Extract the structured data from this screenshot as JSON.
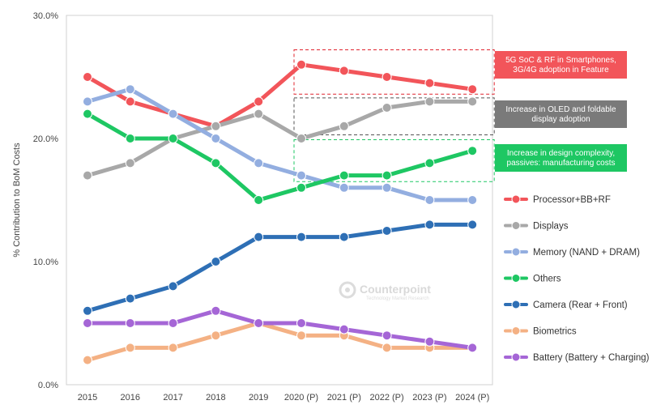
{
  "chart_data": {
    "type": "line",
    "ylabel": "% Contribution to BoM Costs",
    "ylim": [
      0,
      30
    ],
    "yticks": [
      0,
      10,
      20,
      30
    ],
    "ytick_labels": [
      "0.0%",
      "10.0%",
      "20.0%",
      "30.0%"
    ],
    "categories": [
      "2015",
      "2016",
      "2017",
      "2018",
      "2019",
      "2020 (P)",
      "2021 (P)",
      "2022 (P)",
      "2023 (P)",
      "2024 (P)"
    ],
    "legend_position": "right",
    "grid": false,
    "series": [
      {
        "name": "Processor+BB+RF",
        "color": "#f2555a",
        "values": [
          25,
          23,
          22,
          21,
          23,
          26,
          25.5,
          25,
          24.5,
          24
        ]
      },
      {
        "name": "Displays",
        "color": "#a8a8a8",
        "values": [
          17,
          18,
          20,
          21,
          22,
          20,
          21,
          22.5,
          23,
          23
        ]
      },
      {
        "name": "Memory (NAND + DRAM)",
        "color": "#93aee0",
        "values": [
          23,
          24,
          22,
          20,
          18,
          17,
          16,
          16,
          15,
          15
        ]
      },
      {
        "name": "Others",
        "color": "#1ec763",
        "values": [
          22,
          20,
          20,
          18,
          15,
          16,
          17,
          17,
          18,
          19
        ]
      },
      {
        "name": "Camera (Rear + Front)",
        "color": "#2e6fb5",
        "values": [
          6,
          7,
          8,
          10,
          12,
          12,
          12,
          12.5,
          13,
          13
        ]
      },
      {
        "name": "Biometrics",
        "color": "#f4b184",
        "values": [
          2,
          3,
          3,
          4,
          5,
          4,
          4,
          3,
          3,
          3
        ]
      },
      {
        "name": "Battery (Battery + Charging)",
        "color": "#a566d6",
        "values": [
          5,
          5,
          5,
          6,
          5,
          5,
          4.5,
          4,
          3.5,
          3
        ]
      }
    ],
    "annotations": [
      {
        "text": [
          "5G SoC & RF in Smartphones,",
          "3G/4G adoption in Feature"
        ],
        "color": "#f2555a",
        "border_color": "#e0242e",
        "from_category": 5,
        "to_category": 9,
        "y_range": [
          23.6,
          27.2
        ]
      },
      {
        "text": [
          "Increase in OLED and foldable",
          "display adoption"
        ],
        "color": "#7a7a7a",
        "border_color": "#555555",
        "from_category": 5,
        "to_category": 9,
        "y_range": [
          20.3,
          23.3
        ]
      },
      {
        "text": [
          "Increase in design complexity,",
          "passives: manufacturing costs"
        ],
        "color": "#1ec763",
        "border_color": "#1ec763",
        "from_category": 5,
        "to_category": 9,
        "y_range": [
          16.5,
          19.9
        ]
      }
    ]
  },
  "watermark": {
    "brand": "Counterpoint",
    "tagline": "Technology Market Research"
  }
}
